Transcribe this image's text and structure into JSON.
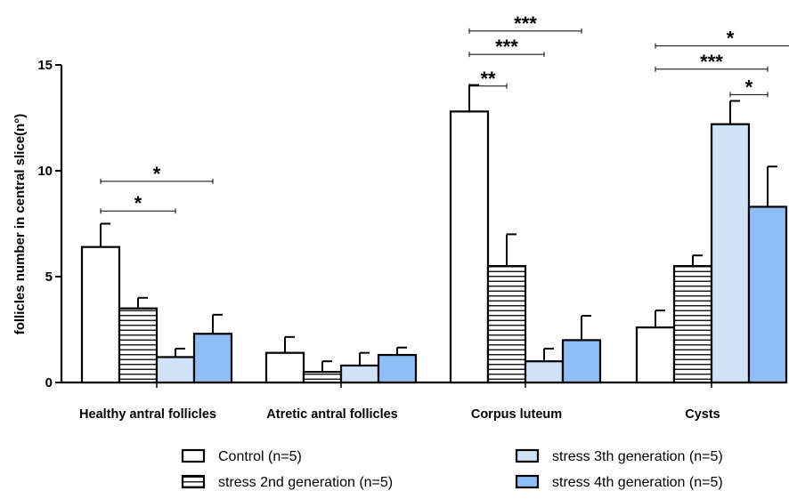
{
  "chart_data": {
    "type": "bar",
    "ylabel": "follicles number in central slice(n°)",
    "ylim": [
      0,
      15
    ],
    "yticks": [
      0,
      5,
      10,
      15
    ],
    "categories": [
      "Healthy antral follicles",
      "Atretic antral follicles",
      "Corpus luteum",
      "Cysts"
    ],
    "series": [
      {
        "name": "Control (n=5)",
        "fill": "#ffffff",
        "pattern": "none",
        "values": [
          6.4,
          1.4,
          12.8,
          2.6
        ],
        "errors": [
          1.1,
          0.75,
          1.25,
          0.8
        ]
      },
      {
        "name": "stress 2nd generation (n=5)",
        "fill": "#ffffff",
        "pattern": "horizontal-stripes",
        "values": [
          3.5,
          0.5,
          5.5,
          5.5
        ],
        "errors": [
          0.5,
          0.5,
          1.5,
          0.5
        ]
      },
      {
        "name": "stress 3th generation (n=5)",
        "fill": "#cfe2f8",
        "pattern": "none",
        "values": [
          1.2,
          0.8,
          1.0,
          12.2
        ],
        "errors": [
          0.4,
          0.6,
          0.6,
          1.1
        ]
      },
      {
        "name": "stress 4th generation (n=5)",
        "fill": "#8fbef7",
        "pattern": "none",
        "values": [
          2.3,
          1.3,
          2.0,
          8.3
        ],
        "errors": [
          0.9,
          0.35,
          1.15,
          1.9
        ]
      }
    ],
    "significance": [
      {
        "category": 0,
        "from": 0,
        "to": 2,
        "label": "*",
        "y": 8.1
      },
      {
        "category": 0,
        "from": 0,
        "to": 3,
        "label": "*",
        "y": 9.5
      },
      {
        "category": 2,
        "from": 0,
        "to": 1,
        "label": "**",
        "y": 14.0
      },
      {
        "category": 2,
        "from": 0,
        "to": 2,
        "label": "***",
        "y": 15.5
      },
      {
        "category": 2,
        "from": 0,
        "to": 3,
        "label": "***",
        "y": 16.6
      },
      {
        "category": 3,
        "from": 2,
        "to": 3,
        "label": "*",
        "y": 13.6
      },
      {
        "category": 3,
        "from": 0,
        "to": 3,
        "label": "***",
        "y": 14.8
      },
      {
        "category": 3,
        "from": 0,
        "to": 4,
        "label": "*",
        "y": 15.9
      }
    ],
    "legend_position": "bottom",
    "grid": false
  }
}
